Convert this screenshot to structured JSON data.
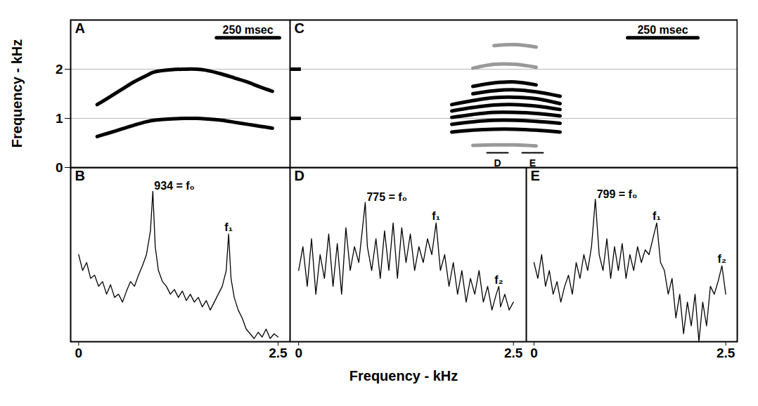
{
  "chart_data": [
    {
      "type": "line",
      "title": "A",
      "ylabel": "Frequency - kHz",
      "x": [
        105,
        150,
        200,
        250,
        300,
        330,
        400,
        450,
        500,
        535,
        600,
        650,
        700,
        750,
        800
      ],
      "series": [
        {
          "color": "#000000",
          "values": [
            0.63,
            0.7,
            0.78,
            0.86,
            0.93,
            0.96,
            0.99,
            1.0,
            1.0,
            0.99,
            0.96,
            0.92,
            0.88,
            0.84,
            0.8
          ]
        },
        {
          "color": "#000000",
          "values": [
            1.28,
            1.42,
            1.58,
            1.74,
            1.87,
            1.94,
            1.99,
            2.0,
            2.0,
            1.98,
            1.9,
            1.82,
            1.74,
            1.64,
            1.55
          ]
        }
      ],
      "xlim": [
        0,
        870
      ],
      "ylim": [
        0,
        3
      ],
      "yticks": [
        0,
        1,
        2
      ],
      "grid": true,
      "tick_labels": "y",
      "scale_bar": {
        "label": "250 msec",
        "start": 578,
        "end": 828
      }
    },
    {
      "type": "line",
      "title": "C",
      "x": [
        575,
        650,
        725,
        800,
        875,
        960
      ],
      "series": [
        {
          "color": "#999999",
          "values": [
            null,
            0.45,
            0.46,
            0.46,
            0.44,
            null
          ]
        },
        {
          "color": "#000000",
          "values": [
            0.72,
            0.76,
            0.78,
            0.78,
            0.76,
            0.72
          ]
        },
        {
          "color": "#000000",
          "values": [
            0.88,
            0.93,
            0.96,
            0.96,
            0.94,
            0.9
          ]
        },
        {
          "color": "#000000",
          "values": [
            1.02,
            1.08,
            1.12,
            1.12,
            1.1,
            1.05
          ]
        },
        {
          "color": "#000000",
          "values": [
            1.15,
            1.22,
            1.27,
            1.28,
            1.25,
            1.18
          ]
        },
        {
          "color": "#000000",
          "values": [
            1.28,
            1.36,
            1.42,
            1.43,
            1.4,
            1.3
          ]
        },
        {
          "color": "#000000",
          "values": [
            null,
            1.5,
            1.56,
            1.58,
            1.54,
            1.45
          ]
        },
        {
          "color": "#000000",
          "values": [
            null,
            1.65,
            1.72,
            1.74,
            1.68,
            null
          ]
        },
        {
          "color": "#999999",
          "values": [
            null,
            2.02,
            2.1,
            2.1,
            2.04,
            null
          ]
        },
        {
          "color": "#999999",
          "values": [
            null,
            null,
            2.48,
            2.5,
            2.45,
            null
          ]
        }
      ],
      "xlim": [
        0,
        1590
      ],
      "ylim": [
        0,
        3
      ],
      "yticks": [
        1,
        2
      ],
      "grid": true,
      "tick_labels": false,
      "scale_bar": {
        "label": "250 msec",
        "start": 1200,
        "end": 1450
      },
      "segments": [
        {
          "label": "D",
          "start": 700,
          "end": 775
        },
        {
          "label": "E",
          "start": 825,
          "end": 900
        }
      ]
    },
    {
      "type": "line",
      "title": "B",
      "color": "#000000",
      "x": [
        0,
        0.05,
        0.1,
        0.15,
        0.2,
        0.25,
        0.3,
        0.35,
        0.4,
        0.45,
        0.5,
        0.55,
        0.6,
        0.65,
        0.7,
        0.75,
        0.8,
        0.85,
        0.9,
        0.93,
        0.96,
        1.0,
        1.05,
        1.1,
        1.15,
        1.2,
        1.25,
        1.3,
        1.35,
        1.4,
        1.45,
        1.5,
        1.55,
        1.6,
        1.65,
        1.7,
        1.75,
        1.8,
        1.85,
        1.88,
        1.91,
        1.95,
        2.0,
        2.05,
        2.1,
        2.15,
        2.2,
        2.25,
        2.3,
        2.35,
        2.4,
        2.45,
        2.5
      ],
      "values": [
        55,
        45,
        50,
        40,
        42,
        35,
        38,
        30,
        36,
        28,
        30,
        25,
        32,
        38,
        35,
        42,
        48,
        55,
        70,
        95,
        60,
        45,
        38,
        35,
        30,
        33,
        28,
        32,
        26,
        30,
        25,
        28,
        22,
        26,
        20,
        25,
        30,
        35,
        45,
        68,
        40,
        28,
        20,
        15,
        8,
        5,
        2,
        6,
        3,
        8,
        2,
        5,
        3
      ],
      "xlim": [
        -0.1,
        2.65
      ],
      "xticks": [
        0,
        2.5
      ],
      "ylim": [
        0,
        110
      ],
      "tick_labels": "x",
      "annotations": [
        {
          "text": "934 = f₀",
          "x": 0.93,
          "y": 95
        },
        {
          "text": "f₁",
          "x": 1.88,
          "y": 68
        }
      ]
    },
    {
      "type": "line",
      "title": "D",
      "color": "#000000",
      "xlabel": "Frequency - kHz",
      "x": [
        0,
        0.05,
        0.1,
        0.15,
        0.2,
        0.25,
        0.3,
        0.35,
        0.4,
        0.45,
        0.5,
        0.55,
        0.6,
        0.65,
        0.7,
        0.75,
        0.775,
        0.8,
        0.85,
        0.9,
        0.95,
        1.0,
        1.05,
        1.1,
        1.15,
        1.2,
        1.25,
        1.3,
        1.35,
        1.4,
        1.45,
        1.5,
        1.55,
        1.6,
        1.65,
        1.7,
        1.75,
        1.8,
        1.85,
        1.9,
        1.95,
        2.0,
        2.05,
        2.1,
        2.15,
        2.2,
        2.25,
        2.3,
        2.33,
        2.35,
        2.4,
        2.45,
        2.5
      ],
      "values": [
        45,
        60,
        35,
        65,
        30,
        55,
        40,
        68,
        35,
        62,
        30,
        72,
        45,
        60,
        50,
        75,
        88,
        60,
        45,
        65,
        40,
        70,
        45,
        75,
        40,
        72,
        50,
        68,
        45,
        60,
        50,
        65,
        55,
        75,
        45,
        55,
        35,
        50,
        30,
        45,
        25,
        40,
        30,
        45,
        25,
        35,
        20,
        30,
        35,
        22,
        30,
        20,
        25
      ],
      "xlim": [
        -0.1,
        2.65
      ],
      "xticks": [
        0,
        2.5
      ],
      "ylim": [
        0,
        110
      ],
      "tick_labels": "x",
      "annotations": [
        {
          "text": "775 = f₀",
          "x": 0.775,
          "y": 88
        },
        {
          "text": "f₁",
          "x": 1.6,
          "y": 75
        },
        {
          "text": "f₂",
          "x": 2.33,
          "y": 35
        }
      ]
    },
    {
      "type": "line",
      "title": "E",
      "color": "#000000",
      "x": [
        0,
        0.05,
        0.1,
        0.15,
        0.2,
        0.25,
        0.3,
        0.35,
        0.4,
        0.45,
        0.5,
        0.55,
        0.6,
        0.65,
        0.7,
        0.75,
        0.8,
        0.85,
        0.9,
        0.95,
        1.0,
        1.05,
        1.1,
        1.15,
        1.2,
        1.25,
        1.3,
        1.35,
        1.4,
        1.45,
        1.5,
        1.55,
        1.6,
        1.65,
        1.7,
        1.75,
        1.8,
        1.85,
        1.9,
        1.95,
        2.0,
        2.05,
        2.1,
        2.15,
        2.2,
        2.25,
        2.3,
        2.35,
        2.4,
        2.45,
        2.5
      ],
      "values": [
        50,
        40,
        55,
        35,
        45,
        30,
        38,
        25,
        35,
        42,
        30,
        50,
        40,
        55,
        45,
        60,
        90,
        55,
        45,
        65,
        40,
        60,
        45,
        62,
        40,
        55,
        45,
        60,
        50,
        58,
        55,
        65,
        75,
        50,
        45,
        30,
        40,
        15,
        30,
        5,
        25,
        10,
        30,
        0,
        25,
        10,
        35,
        30,
        38,
        48,
        30
      ],
      "xlim": [
        -0.1,
        2.65
      ],
      "xticks": [
        0,
        2.5
      ],
      "ylim": [
        0,
        110
      ],
      "tick_labels": "x",
      "annotations": [
        {
          "text": "799 = f₀",
          "x": 0.8,
          "y": 90
        },
        {
          "text": "f₁",
          "x": 1.6,
          "y": 75
        },
        {
          "text": "f₂",
          "x": 2.45,
          "y": 48
        }
      ]
    }
  ]
}
